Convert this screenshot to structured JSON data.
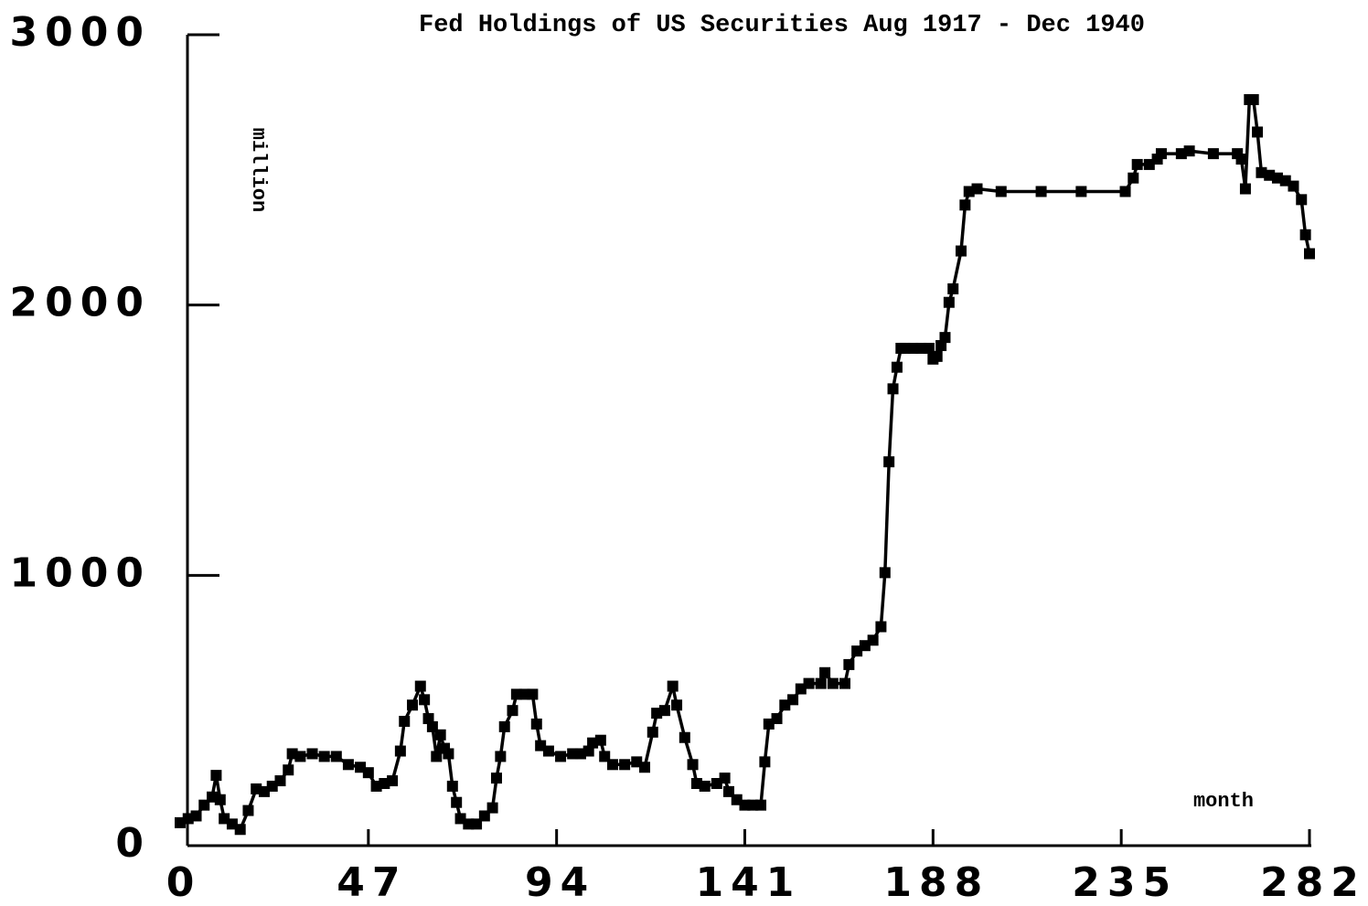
{
  "chart_data": {
    "type": "line",
    "title": "Fed Holdings of US Securities Aug 1917 - Dec 1940",
    "y_label": "million",
    "x_label": "month",
    "xlim": [
      0,
      282
    ],
    "xticks": [
      0,
      47,
      94,
      141,
      188,
      235,
      282
    ],
    "ylim": [
      0,
      3000
    ],
    "yticks": [
      0,
      1000,
      2000,
      3000
    ],
    "grid": false,
    "series": [
      {
        "name": "Fed Holdings of US Securities",
        "color": "#000000",
        "x": [
          0,
          2,
          4,
          6,
          8,
          9,
          10,
          11,
          13,
          15,
          17,
          19,
          21,
          23,
          25,
          27,
          28,
          30,
          33,
          36,
          39,
          42,
          45,
          47,
          49,
          51,
          53,
          55,
          56,
          58,
          60,
          61,
          62,
          63,
          64,
          65,
          66,
          67,
          68,
          69,
          70,
          72,
          74,
          76,
          78,
          79,
          80,
          81,
          83,
          84,
          86,
          88,
          89,
          90,
          92,
          95,
          98,
          100,
          102,
          103,
          105,
          106,
          108,
          111,
          114,
          116,
          118,
          119,
          121,
          123,
          124,
          126,
          128,
          129,
          131,
          134,
          136,
          137,
          139,
          141,
          143,
          145,
          146,
          147,
          149,
          151,
          153,
          155,
          157,
          160,
          161,
          163,
          166,
          167,
          169,
          171,
          173,
          175,
          176,
          177,
          178,
          179,
          180,
          181,
          183,
          185,
          187,
          188,
          189,
          190,
          191,
          192,
          193,
          195,
          196,
          197,
          199,
          205,
          215,
          225,
          236,
          238,
          239,
          242,
          244,
          245,
          250,
          252,
          258,
          264,
          265,
          266,
          267,
          268,
          269,
          270,
          272,
          274,
          276,
          278,
          280,
          281,
          282
        ],
        "values": [
          85,
          100,
          110,
          150,
          180,
          260,
          170,
          100,
          80,
          60,
          130,
          210,
          200,
          220,
          240,
          280,
          340,
          330,
          340,
          330,
          330,
          300,
          290,
          270,
          220,
          230,
          240,
          350,
          460,
          520,
          590,
          540,
          470,
          440,
          330,
          410,
          360,
          340,
          220,
          160,
          100,
          80,
          80,
          110,
          140,
          250,
          330,
          440,
          500,
          560,
          560,
          560,
          450,
          370,
          350,
          330,
          340,
          340,
          350,
          380,
          390,
          330,
          300,
          300,
          310,
          290,
          420,
          490,
          500,
          590,
          520,
          400,
          300,
          230,
          220,
          230,
          250,
          200,
          170,
          150,
          150,
          150,
          310,
          450,
          470,
          520,
          540,
          580,
          600,
          600,
          640,
          600,
          600,
          670,
          720,
          740,
          760,
          810,
          1010,
          1420,
          1690,
          1770,
          1840,
          1840,
          1840,
          1840,
          1840,
          1800,
          1810,
          1850,
          1880,
          2010,
          2060,
          2200,
          2370,
          2420,
          2430,
          2420,
          2420,
          2420,
          2420,
          2470,
          2520,
          2520,
          2540,
          2560,
          2560,
          2570,
          2560,
          2560,
          2540,
          2430,
          2760,
          2760,
          2640,
          2490,
          2480,
          2470,
          2460,
          2440,
          2390,
          2260,
          2190
        ]
      }
    ]
  }
}
